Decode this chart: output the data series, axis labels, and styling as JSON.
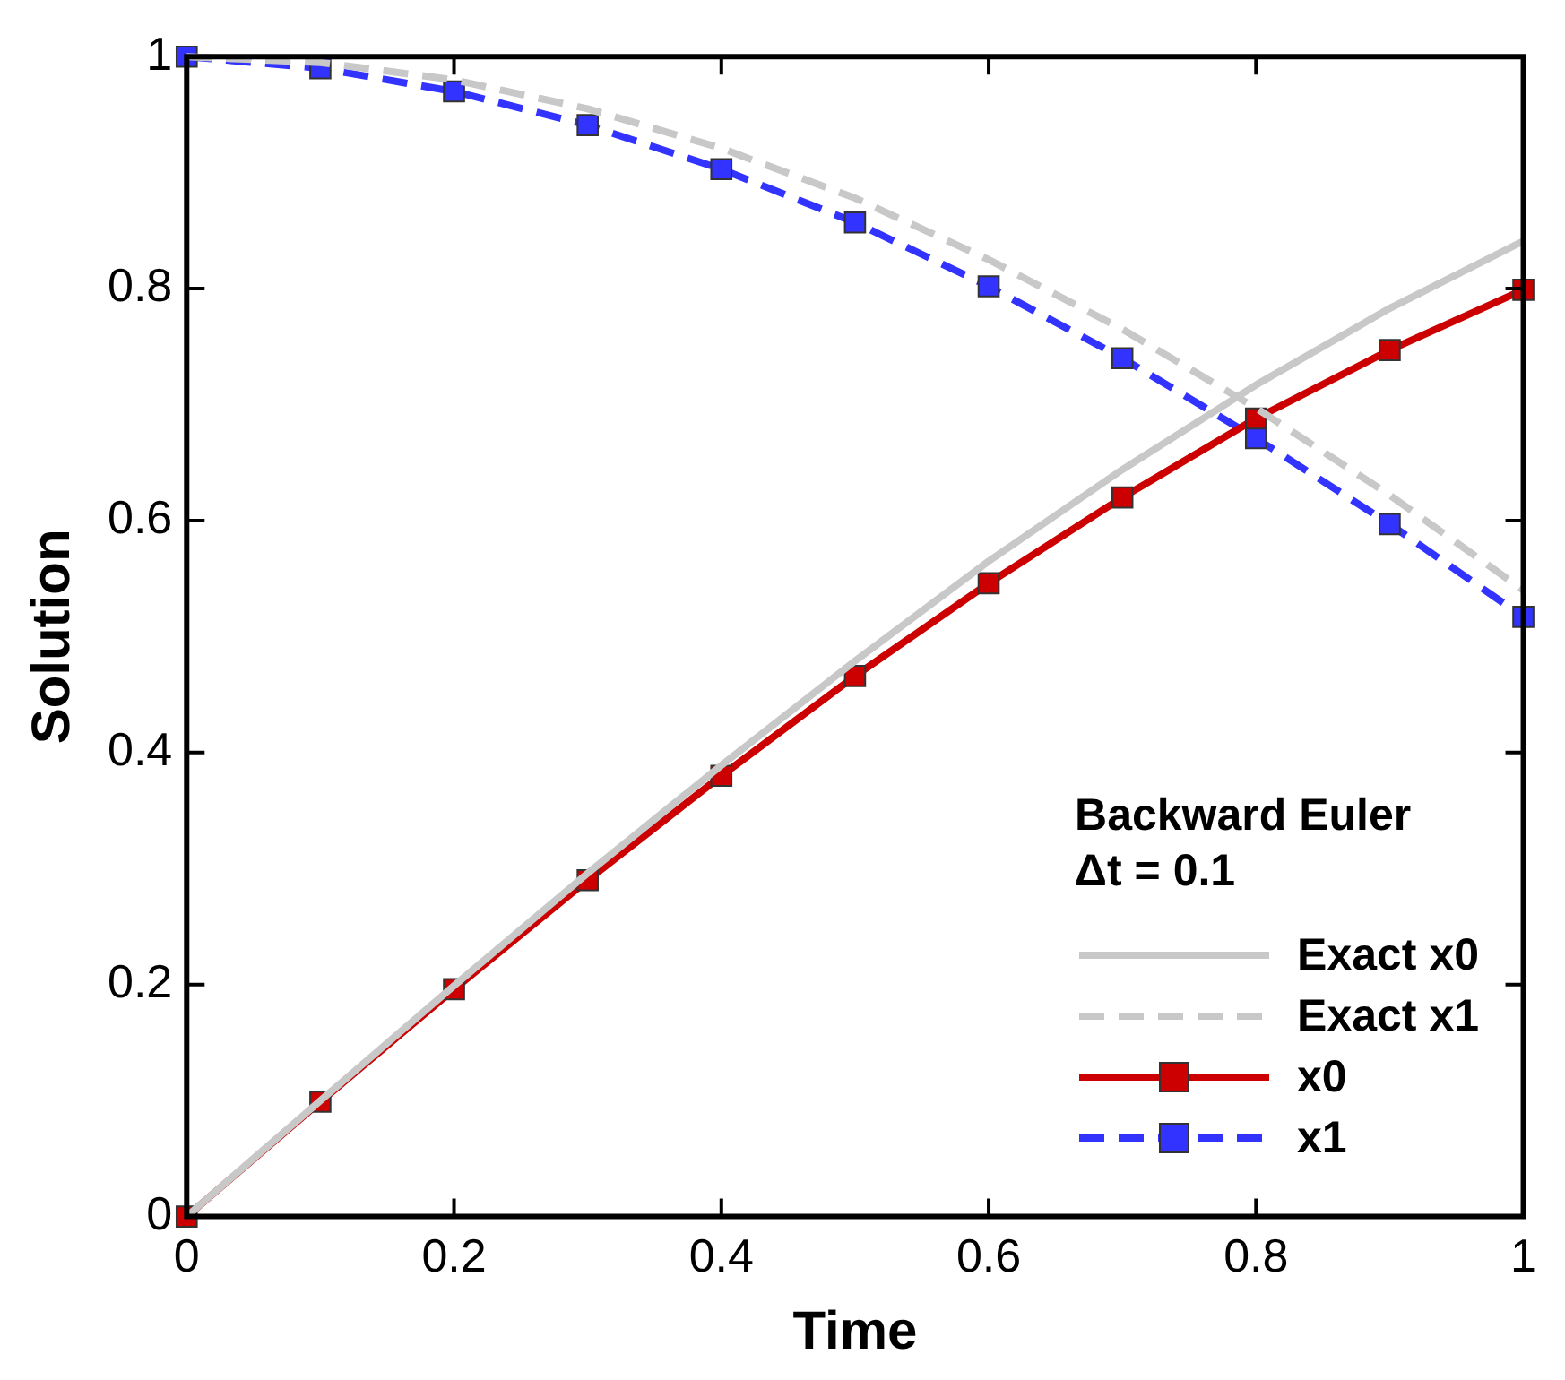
{
  "chart_data": {
    "type": "line",
    "xlabel": "Time",
    "ylabel": "Solution",
    "legend_title": "Backward Euler\nΔt = 0.1",
    "legend": "bottom right",
    "grid": false,
    "x": [
      0,
      0.1,
      0.2,
      0.3,
      0.4,
      0.5,
      0.6,
      0.7,
      0.8,
      0.9,
      1
    ],
    "xlim": [
      0,
      1
    ],
    "xticks": [
      0,
      0.2,
      0.4,
      0.6,
      0.8,
      1
    ],
    "ylim": [
      0,
      1
    ],
    "yticks": [
      0,
      0.2,
      0.4,
      0.6,
      0.8,
      1
    ],
    "series": [
      {
        "name": "Exact x0",
        "color": "#c8c8c8",
        "marker": "none",
        "line_style": "solid",
        "values": [
          0,
          0.1,
          0.199,
          0.296,
          0.389,
          0.479,
          0.565,
          0.644,
          0.717,
          0.783,
          0.841
        ]
      },
      {
        "name": "Exact x1",
        "color": "#c8c8c8",
        "marker": "none",
        "line_style": "dashed",
        "values": [
          1,
          0.995,
          0.98,
          0.955,
          0.921,
          0.878,
          0.825,
          0.765,
          0.697,
          0.622,
          0.54
        ]
      },
      {
        "name": "x0",
        "color": "#cc0000",
        "marker": "square",
        "line_style": "solid",
        "values": [
          0,
          0.099,
          0.196,
          0.29,
          0.38,
          0.466,
          0.546,
          0.62,
          0.688,
          0.747,
          0.799
        ]
      },
      {
        "name": "x1",
        "color": "#3333ff",
        "marker": "square",
        "line_style": "dashed",
        "values": [
          1,
          0.99,
          0.97,
          0.941,
          0.903,
          0.857,
          0.802,
          0.74,
          0.671,
          0.597,
          0.517
        ]
      }
    ]
  }
}
